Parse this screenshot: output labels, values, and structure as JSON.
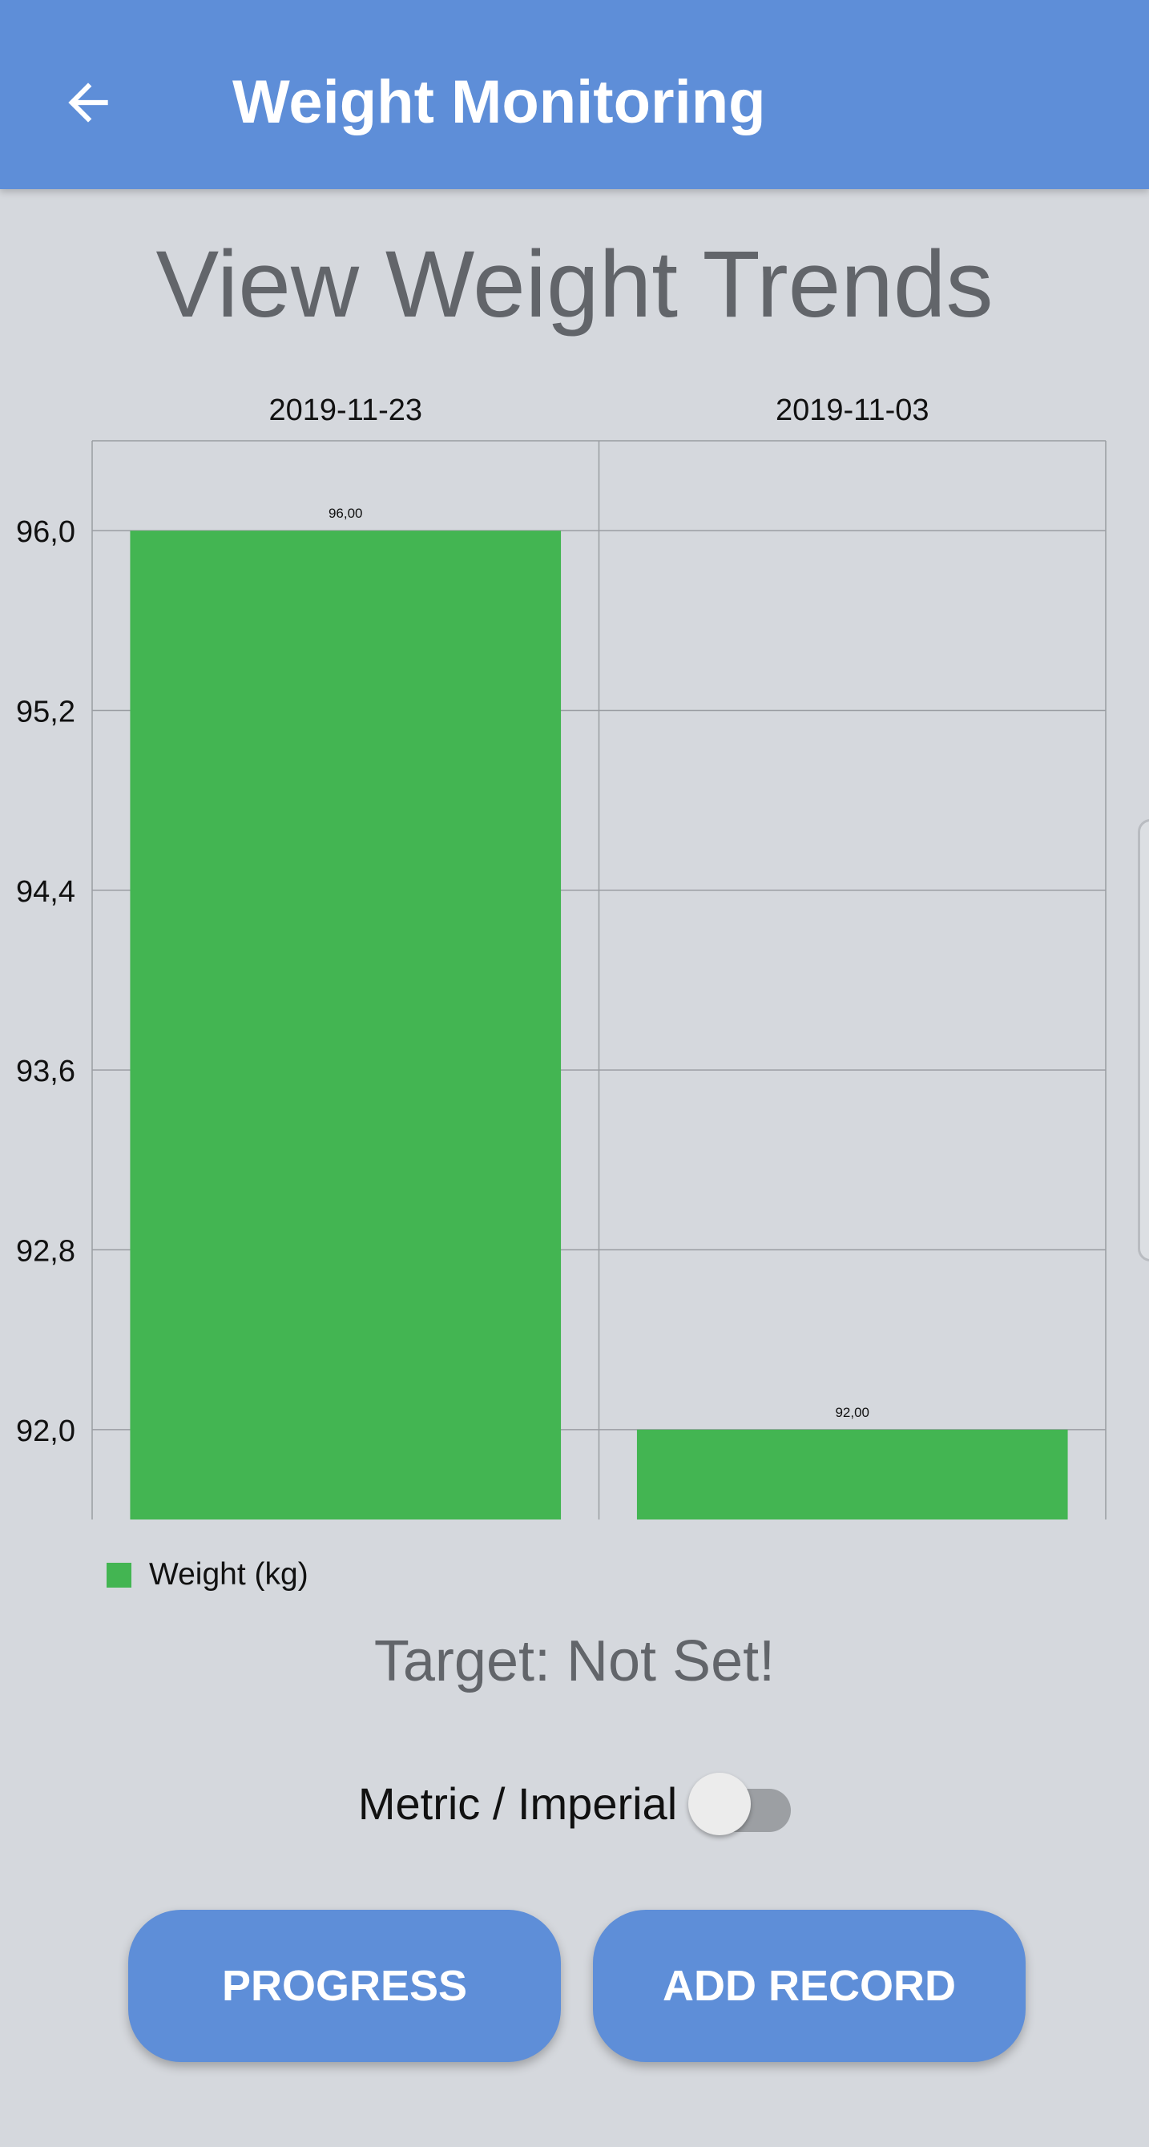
{
  "header": {
    "back_icon": "arrow-left-icon",
    "title": "Weight Monitoring",
    "background": "#5e8ed8"
  },
  "heading": "View Weight Trends",
  "chart_data": {
    "type": "bar",
    "categories": [
      "2019-11-23",
      "2019-11-03"
    ],
    "series": [
      {
        "name": "Weight (kg)",
        "values": [
          96.0,
          92.0
        ],
        "value_labels": [
          "96,00",
          "92,00"
        ],
        "color": "#43b552"
      }
    ],
    "y_ticks": [
      "96,0",
      "95,2",
      "94,4",
      "93,6",
      "92,8",
      "92,0"
    ],
    "ylim": [
      91.6,
      96.4
    ],
    "category_axis_position": "top",
    "grid": true,
    "legend": "bottom-left"
  },
  "target_text": "Target: Not Set!",
  "units": {
    "label": "Metric / Imperial",
    "imperial_enabled": false
  },
  "buttons": {
    "progress": "PROGRESS",
    "add_record": "ADD RECORD"
  }
}
